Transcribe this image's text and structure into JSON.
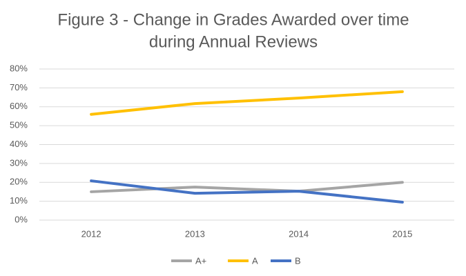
{
  "chart_data": {
    "type": "line",
    "title": [
      "Figure 3 - Change in Grades Awarded over time",
      "during Annual Reviews"
    ],
    "categories": [
      "2012",
      "2013",
      "2014",
      "2015"
    ],
    "series": [
      {
        "name": "A+",
        "color": "#a5a5a5",
        "values": [
          15,
          17.5,
          15.3,
          20
        ]
      },
      {
        "name": "A",
        "color": "#ffc000",
        "values": [
          56,
          61.7,
          64.6,
          68
        ]
      },
      {
        "name": "B",
        "color": "#4472c4",
        "values": [
          20.8,
          14.2,
          15.3,
          9.5
        ]
      }
    ],
    "ylim": [
      0,
      80
    ],
    "yticks": [
      {
        "value": 0,
        "label": "0%"
      },
      {
        "value": 10,
        "label": "10%"
      },
      {
        "value": 20,
        "label": "20%"
      },
      {
        "value": 30,
        "label": "30%"
      },
      {
        "value": 40,
        "label": "40%"
      },
      {
        "value": 50,
        "label": "50%"
      },
      {
        "value": 60,
        "label": "60%"
      },
      {
        "value": 70,
        "label": "70%"
      },
      {
        "value": 80,
        "label": "80%"
      }
    ],
    "grid": true,
    "legend": "bottom"
  }
}
